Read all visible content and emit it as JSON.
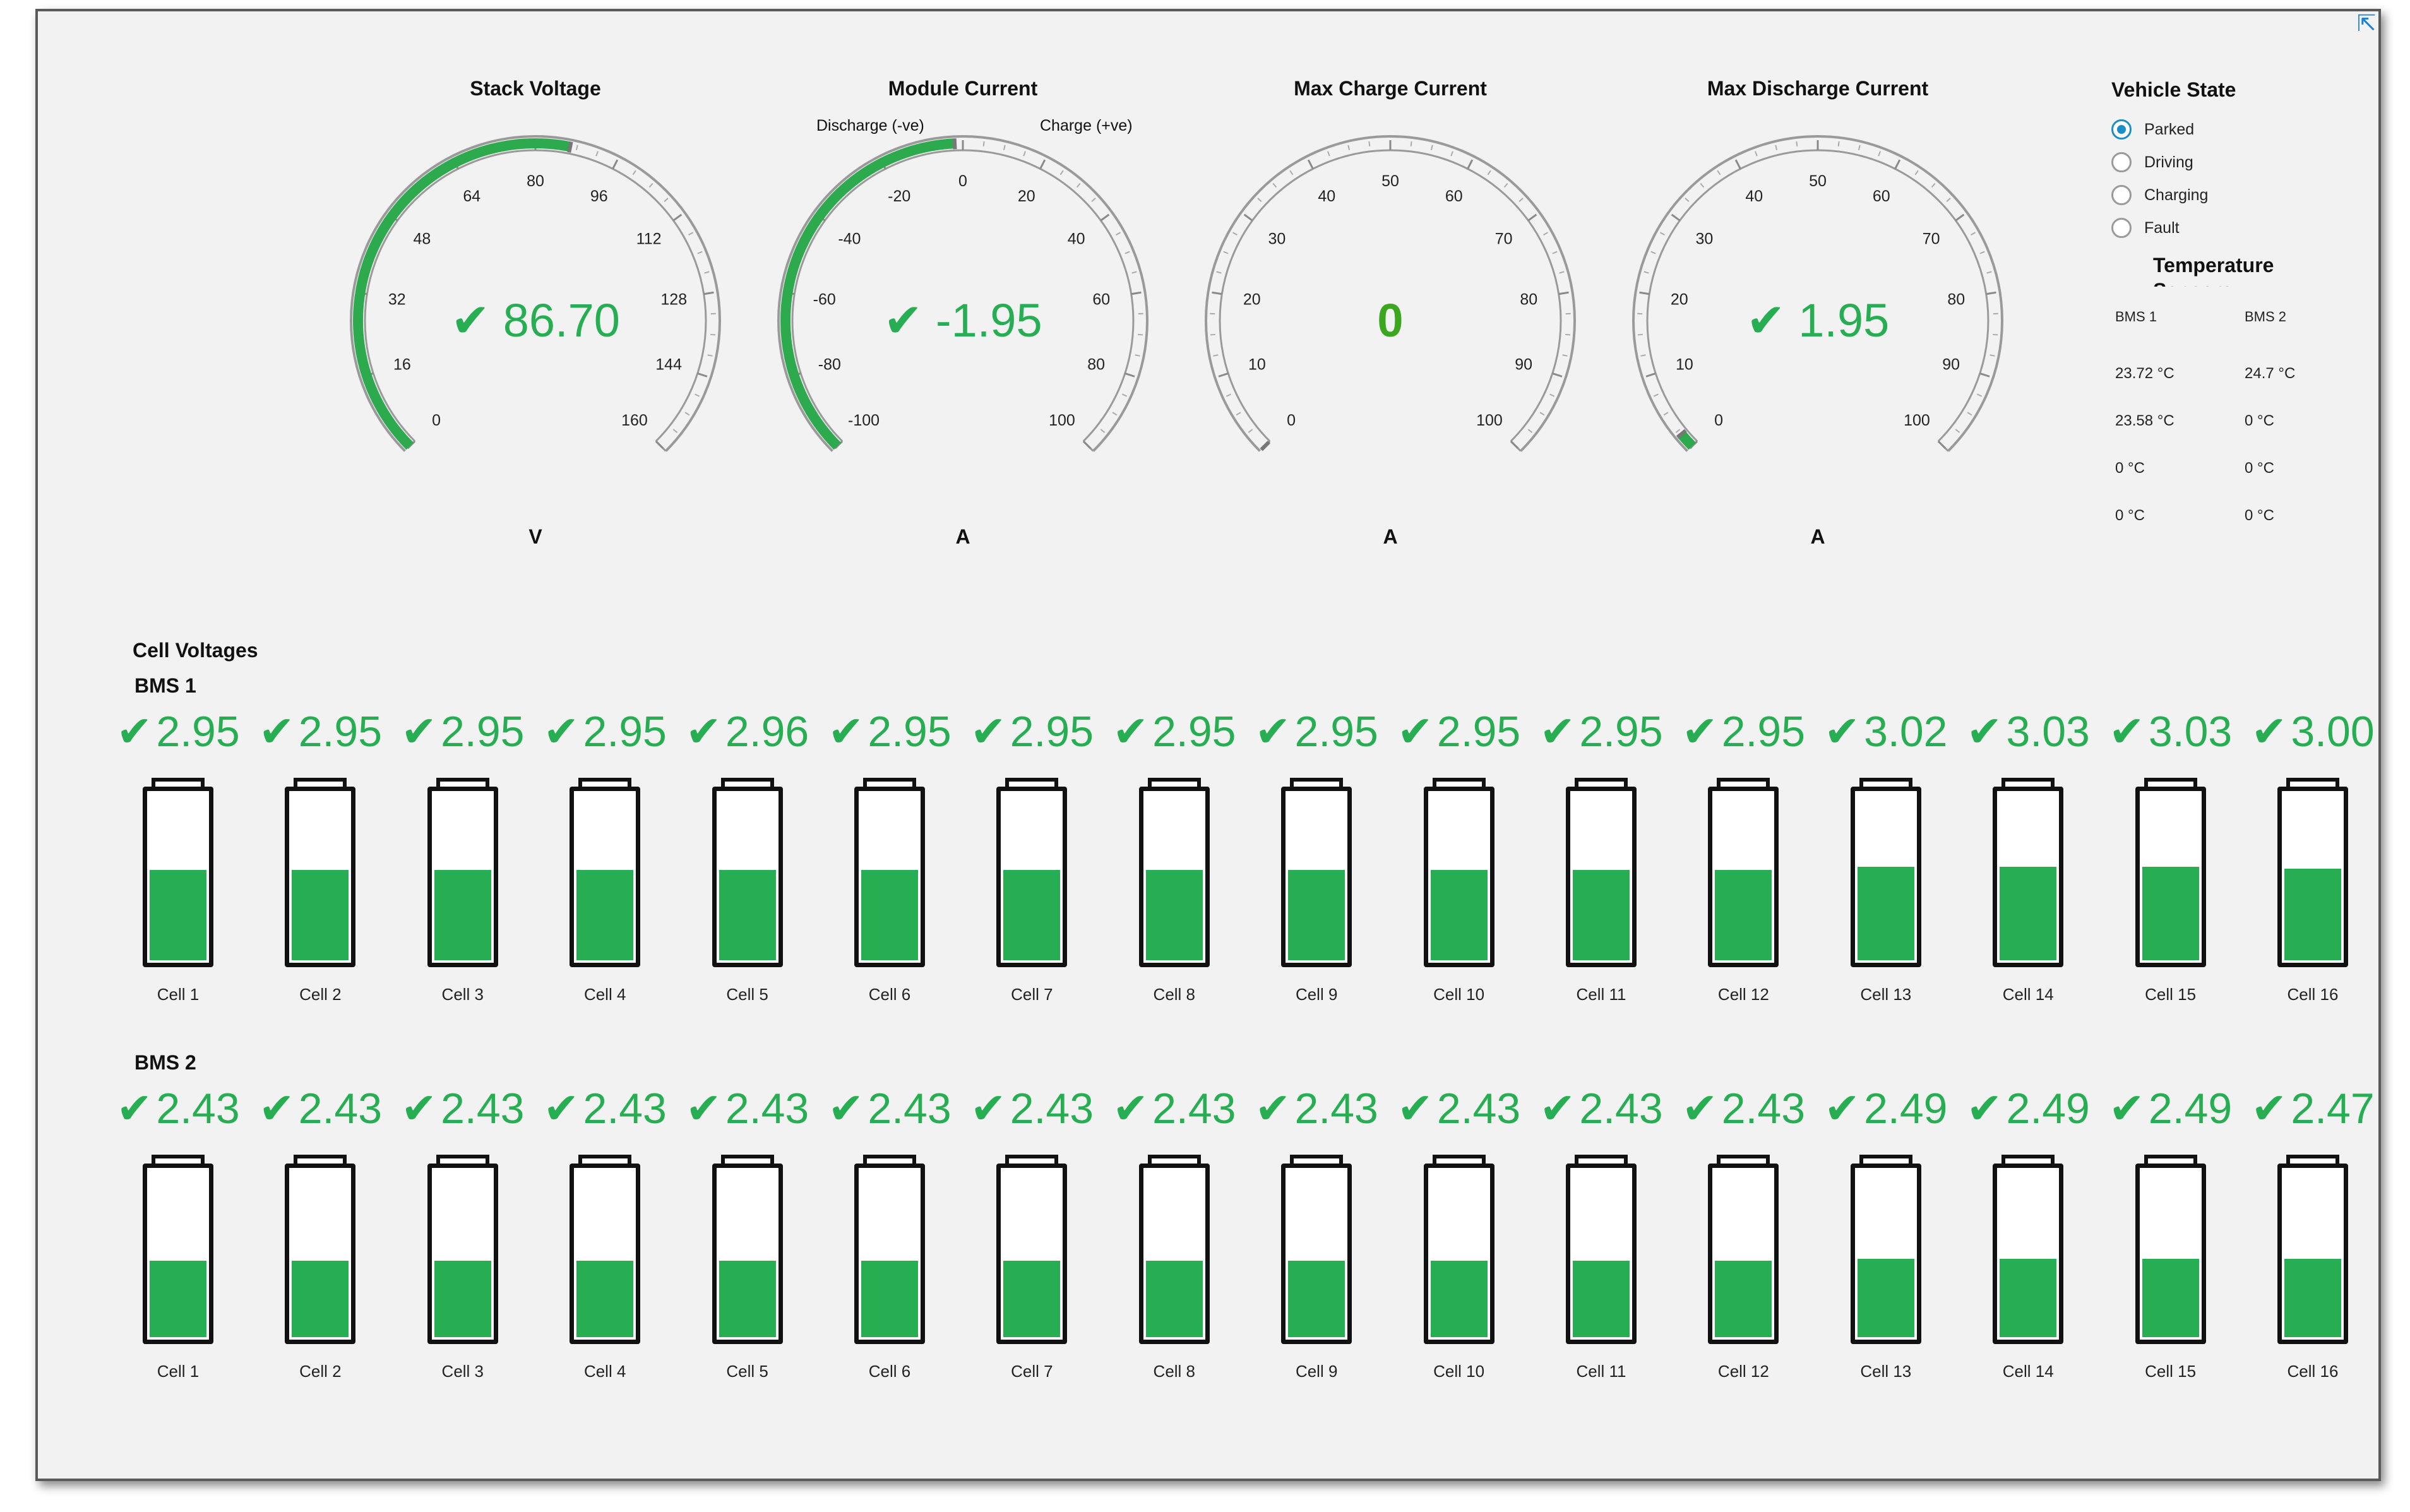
{
  "window": {
    "popout_icon": "popout-arrow-icon"
  },
  "colors": {
    "value_green": "#27ae52",
    "gauge_bright_green": "#3aa71f",
    "radio_selected": "#1b8fc4"
  },
  "gauges": [
    {
      "id": "stack-voltage",
      "title": "Stack Voltage",
      "unit": "V",
      "min": 0,
      "max": 160,
      "tick_labels": [
        "0",
        "16",
        "32",
        "48",
        "64",
        "80",
        "96",
        "112",
        "128",
        "144",
        "160"
      ],
      "value": 86.7,
      "display": "86.70",
      "check": true,
      "fill": "arc",
      "value_color": "#27ae52",
      "left_label": "",
      "right_label": ""
    },
    {
      "id": "module-current",
      "title": "Module Current",
      "unit": "A",
      "min": -100,
      "max": 100,
      "tick_labels": [
        "-100",
        "-80",
        "-60",
        "-40",
        "-20",
        "0",
        "20",
        "40",
        "60",
        "80",
        "100"
      ],
      "value": -1.95,
      "display": "-1.95",
      "check": true,
      "fill": "arc",
      "value_color": "#27ae52",
      "left_label": "Discharge (-ve)",
      "right_label": "Charge (+ve)"
    },
    {
      "id": "max-charge-current",
      "title": "Max Charge Current",
      "unit": "A",
      "min": 0,
      "max": 100,
      "tick_labels": [
        "0",
        "10",
        "20",
        "30",
        "40",
        "50",
        "60",
        "70",
        "80",
        "90",
        "100"
      ],
      "value": 0,
      "display": "0",
      "check": false,
      "fill": "none",
      "value_color": "#3aa71f",
      "left_label": "",
      "right_label": ""
    },
    {
      "id": "max-discharge-current",
      "title": "Max Discharge Current",
      "unit": "A",
      "min": 0,
      "max": 100,
      "tick_labels": [
        "0",
        "10",
        "20",
        "30",
        "40",
        "50",
        "60",
        "70",
        "80",
        "90",
        "100"
      ],
      "value": 1.95,
      "display": "1.95",
      "check": true,
      "fill": "arc",
      "value_color": "#27ae52",
      "left_label": "",
      "right_label": ""
    }
  ],
  "vehicle_state": {
    "title": "Vehicle State",
    "options": [
      "Parked",
      "Driving",
      "Charging",
      "Fault"
    ],
    "selected": "Parked"
  },
  "temperature": {
    "title": "Temperature Sensors",
    "columns": [
      "BMS 1",
      "BMS 2"
    ],
    "rows": [
      [
        "23.72 °C",
        "24.7 °C"
      ],
      [
        "23.58 °C",
        "0 °C"
      ],
      [
        "0 °C",
        "0 °C"
      ],
      [
        "0 °C",
        "0 °C"
      ]
    ]
  },
  "cell_voltages": {
    "title": "Cell Voltages",
    "check_icon": "check-icon",
    "battery_icon": "battery-icon",
    "banks": [
      {
        "title": "BMS 1",
        "values": [
          "2.95",
          "2.95",
          "2.95",
          "2.95",
          "2.96",
          "2.95",
          "2.95",
          "2.95",
          "2.95",
          "2.95",
          "2.95",
          "2.95",
          "3.02",
          "3.03",
          "3.03",
          "3.00"
        ],
        "fill_fraction": [
          0.54,
          0.54,
          0.54,
          0.54,
          0.54,
          0.54,
          0.54,
          0.54,
          0.54,
          0.54,
          0.54,
          0.54,
          0.56,
          0.56,
          0.56,
          0.55
        ],
        "labels": [
          "Cell 1",
          "Cell 2",
          "Cell 3",
          "Cell 4",
          "Cell 5",
          "Cell 6",
          "Cell 7",
          "Cell 8",
          "Cell 9",
          "Cell 10",
          "Cell 11",
          "Cell 12",
          "Cell 13",
          "Cell 14",
          "Cell 15",
          "Cell 16"
        ]
      },
      {
        "title": "BMS 2",
        "values": [
          "2.43",
          "2.43",
          "2.43",
          "2.43",
          "2.43",
          "2.43",
          "2.43",
          "2.43",
          "2.43",
          "2.43",
          "2.43",
          "2.43",
          "2.49",
          "2.49",
          "2.49",
          "2.47"
        ],
        "fill_fraction": [
          0.46,
          0.46,
          0.46,
          0.46,
          0.46,
          0.46,
          0.46,
          0.46,
          0.46,
          0.46,
          0.46,
          0.46,
          0.47,
          0.47,
          0.47,
          0.47
        ],
        "labels": [
          "Cell 1",
          "Cell 2",
          "Cell 3",
          "Cell 4",
          "Cell 5",
          "Cell 6",
          "Cell 7",
          "Cell 8",
          "Cell 9",
          "Cell 10",
          "Cell 11",
          "Cell 12",
          "Cell 13",
          "Cell 14",
          "Cell 15",
          "Cell 16"
        ]
      }
    ]
  }
}
